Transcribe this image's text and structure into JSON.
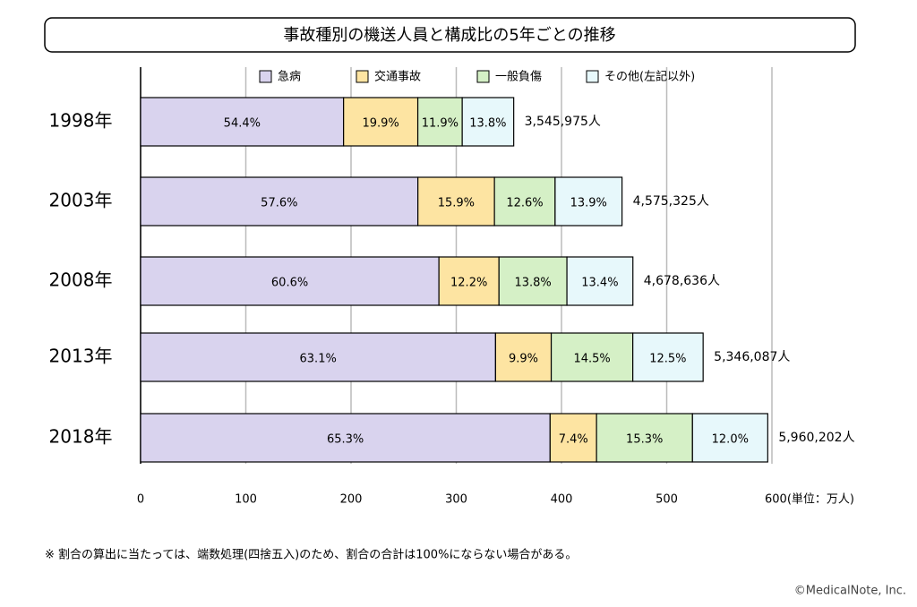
{
  "chart_data": {
    "type": "stacked-bar-horizontal",
    "title": "事故種別の機送人員と構成比の5年ごとの推移",
    "categories": [
      "1998年",
      "2003年",
      "2008年",
      "2013年",
      "2018年"
    ],
    "series": [
      {
        "name": "急病",
        "color": "#d9d3ee",
        "values": [
          54.4,
          57.6,
          60.6,
          63.1,
          65.3
        ],
        "value_labels": [
          "54.4%",
          "57.6%",
          "60.6%",
          "63.1%",
          "65.3%"
        ]
      },
      {
        "name": "交通事故",
        "color": "#fde4a2",
        "values": [
          19.9,
          15.9,
          12.2,
          9.9,
          7.4
        ],
        "value_labels": [
          "19.9%",
          "15.9%",
          "12.2%",
          "9.9%",
          "7.4%"
        ]
      },
      {
        "name": "一般負傷",
        "color": "#d5f0c6",
        "values": [
          11.9,
          12.6,
          13.8,
          14.5,
          15.3
        ],
        "value_labels": [
          "11.9%",
          "12.6%",
          "13.8%",
          "14.5%",
          "15.3%"
        ]
      },
      {
        "name": "その他(左記以外)",
        "color": "#e7f8fb",
        "values": [
          13.8,
          13.9,
          13.4,
          12.5,
          12.0
        ],
        "value_labels": [
          "13.8%",
          "13.9%",
          "13.4%",
          "12.5%",
          "12.0%"
        ]
      }
    ],
    "totals": {
      "values": [
        354.5975,
        457.5325,
        467.8636,
        534.6087,
        596.0202
      ],
      "value_labels": [
        "3,545,975人",
        "4,575,325人",
        "4,678,636人",
        "5,346,087人",
        "5,960,202人"
      ]
    },
    "xlim": [
      0,
      600
    ],
    "xticks": [
      0,
      100,
      200,
      300,
      400,
      500,
      {
        "value": 600,
        "label": "600(単位：万人)"
      }
    ],
    "grid": true,
    "note": "※ 割合の算出に当たっては、端数処理(四捨五入)のため、割合の合計は100%にならない場合がある。",
    "credit": "©MedicalNote, Inc."
  }
}
